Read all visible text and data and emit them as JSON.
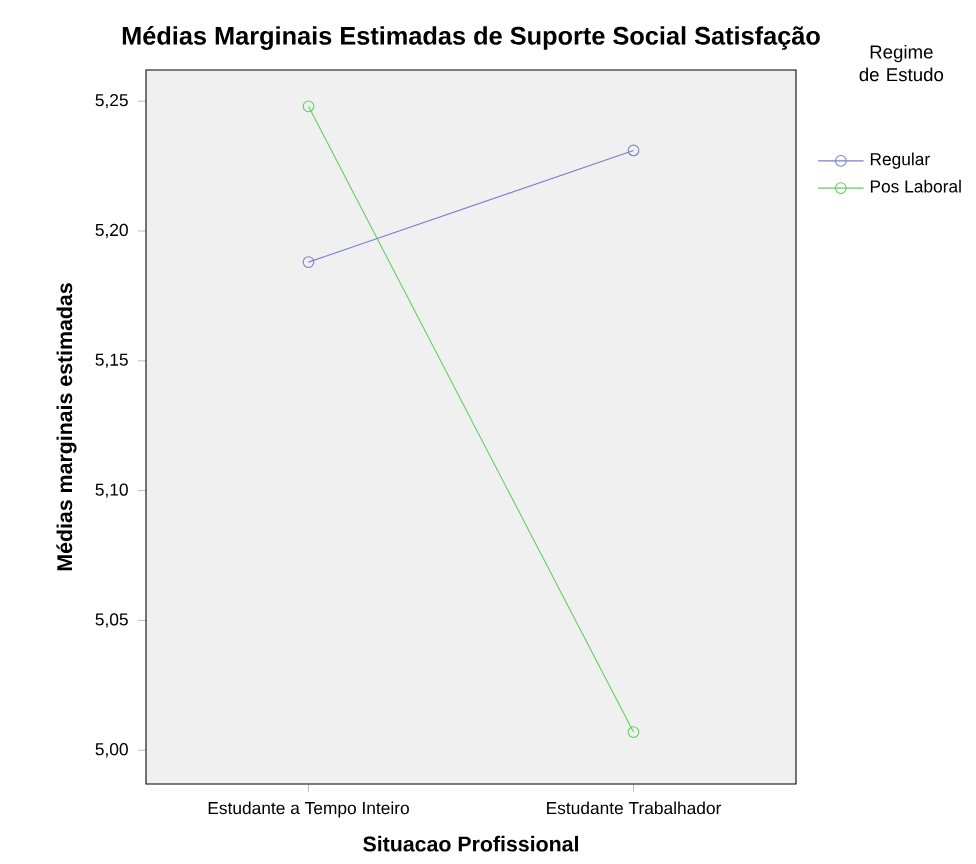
{
  "chart_data": {
    "type": "line",
    "title": "Médias Marginais Estimadas de Suporte Social Satisfação",
    "xlabel": "Situacao Profissional",
    "ylabel": "Médias marginais estimadas",
    "legend_title": "Regime de Estudo",
    "categories": [
      "Estudante a Tempo Inteiro",
      "Estudante Trabalhador"
    ],
    "series": [
      {
        "name": "Regular",
        "color": "#7b7fcf",
        "values": [
          5.188,
          5.231
        ]
      },
      {
        "name": "Pos Laboral",
        "color": "#5fcf5f",
        "values": [
          5.248,
          5.007
        ]
      }
    ],
    "ylim": [
      4.987,
      5.262
    ],
    "yticks": [
      {
        "value": 5.0,
        "label": "5,00"
      },
      {
        "value": 5.05,
        "label": "5,05"
      },
      {
        "value": 5.1,
        "label": "5,10"
      },
      {
        "value": 5.15,
        "label": "5,15"
      },
      {
        "value": 5.2,
        "label": "5,20"
      },
      {
        "value": 5.25,
        "label": "5,25"
      }
    ],
    "legend": "right",
    "marker": "circle",
    "line_style": "solid",
    "grid": false
  }
}
